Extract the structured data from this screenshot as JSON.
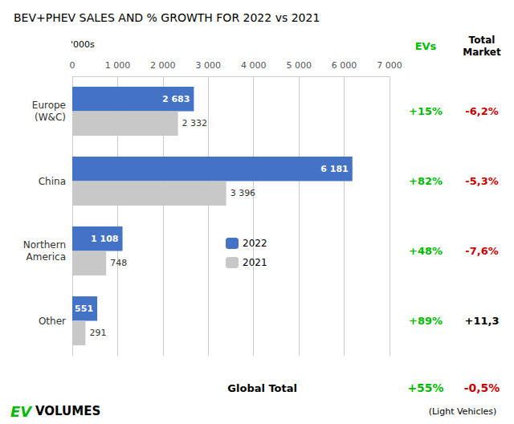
{
  "chart_data": {
    "type": "bar",
    "title": "BEV+PHEV SALES AND % GROWTH FOR 2022 vs 2021",
    "orientation": "horizontal",
    "categories": [
      "Europe\n(W&C)",
      "China",
      "Northern\nAmerica",
      "Other"
    ],
    "series": [
      {
        "name": "2022",
        "color": "#4472C4",
        "values": [
          2683,
          6181,
          1108,
          551
        ],
        "value_labels": [
          "2 683",
          "6 181",
          "1 108",
          "551"
        ]
      },
      {
        "name": "2021",
        "color": "#C8C8C8",
        "values": [
          2332,
          3396,
          748,
          291
        ],
        "value_labels": [
          "2 332",
          "3 396",
          "748",
          "291"
        ]
      }
    ],
    "xlim": [
      0,
      7000
    ],
    "xticks": [
      0,
      {
        "value": 1000,
        "label": "1 000"
      },
      {
        "value": 2000,
        "label": "2 000"
      },
      {
        "value": 3000,
        "label": "3 000"
      },
      {
        "value": 4000,
        "label": "4 000"
      },
      {
        "value": 5000,
        "label": "5 000"
      },
      {
        "value": 6000,
        "label": "6 000"
      },
      {
        "value": 7000,
        "label": "7 000"
      }
    ],
    "grid": true,
    "legend": "right",
    "data_labels": true,
    "annotations": {
      "unit_label": "'000s",
      "columns": [
        {
          "header": "EVs",
          "header_color": "#00BB00",
          "values": [
            "+15%",
            "+82%",
            "+48%",
            "+89%"
          ],
          "colors": [
            "#00BB00",
            "#00BB00",
            "#00BB00",
            "#00BB00"
          ],
          "total": "+55%",
          "total_color": "#00BB00"
        },
        {
          "header": "Total\nMarket",
          "header_color": "#000000",
          "values": [
            "-6,2%",
            "-5,3%",
            "-7,6%",
            "+11,3"
          ],
          "colors": [
            "#CC0000",
            "#CC0000",
            "#CC0000",
            "#000000"
          ],
          "total": "-0,5%",
          "total_color": "#CC0000"
        }
      ],
      "total_label": "Global Total",
      "footnote": "(Light Vehicles)",
      "logo": [
        {
          "text": "EV",
          "color": "#00BB00"
        },
        {
          "text": "VOLUMES",
          "color": "#000000"
        }
      ]
    }
  }
}
